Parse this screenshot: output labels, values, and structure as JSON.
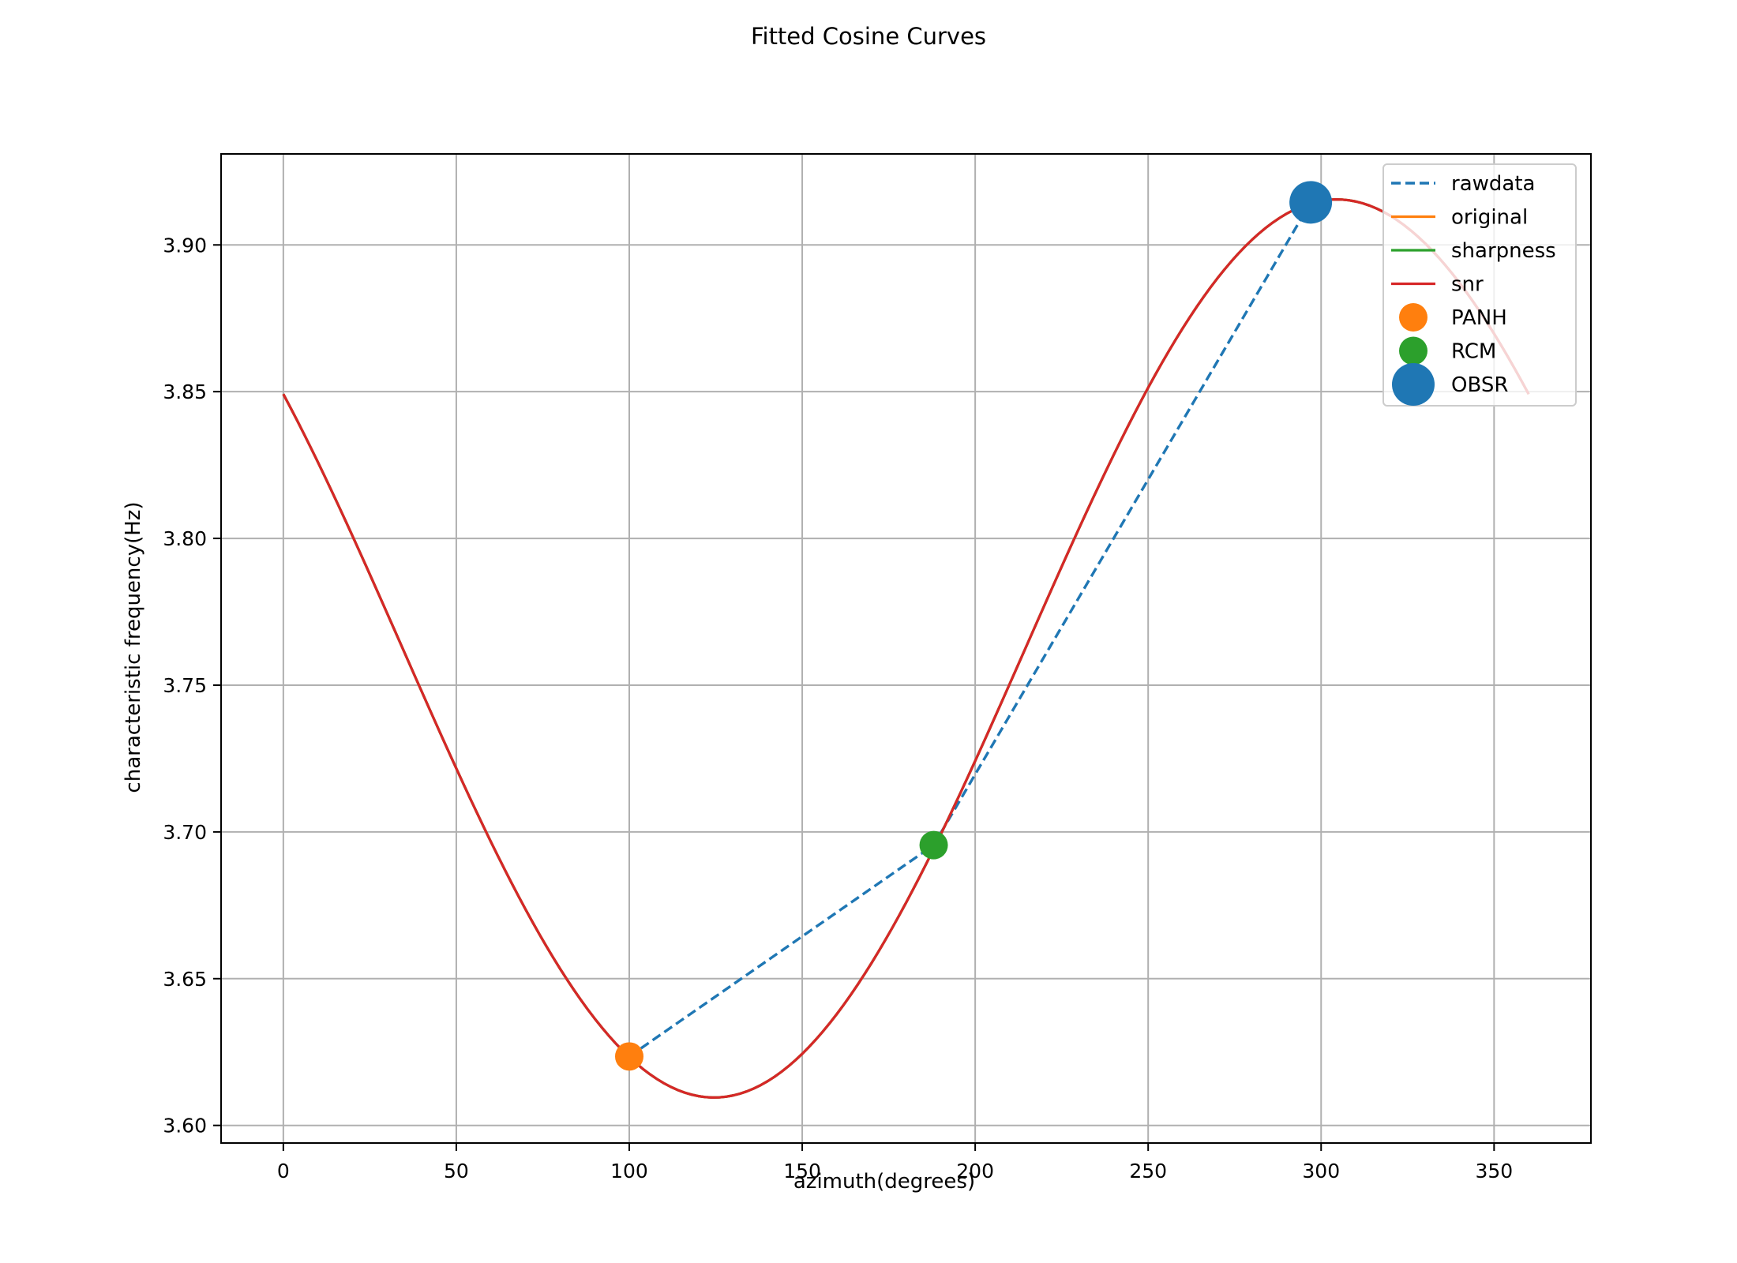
{
  "chart_data": {
    "type": "line",
    "title": "Fitted Cosine Curves",
    "xlabel": "azimuth(degrees)",
    "ylabel": "characteristic frequency(Hz)",
    "xlim": [
      -18,
      378
    ],
    "ylim": [
      3.594,
      3.931
    ],
    "xticks": [
      0,
      50,
      100,
      150,
      200,
      250,
      300,
      350
    ],
    "xtick_labels": [
      "0",
      "50",
      "100",
      "150",
      "200",
      "250",
      "300",
      "350"
    ],
    "yticks": [
      3.6,
      3.65,
      3.7,
      3.75,
      3.8,
      3.85,
      3.9
    ],
    "ytick_labels": [
      "3.60",
      "3.65",
      "3.70",
      "3.75",
      "3.80",
      "3.85",
      "3.90"
    ],
    "grid": true,
    "legend_position": "top-right",
    "series": [
      {
        "name": "rawdata",
        "kind": "line",
        "style": "dashed",
        "color": "#1f77b4",
        "x": [
          100,
          188,
          297
        ],
        "y": [
          3.6235,
          3.6955,
          3.9145
        ]
      },
      {
        "name": "original",
        "kind": "cosine",
        "color": "#ff7f0e",
        "mean": 3.7625,
        "amplitude": 0.153,
        "phase_deg": 304.5,
        "x_range": [
          0,
          360
        ]
      },
      {
        "name": "sharpness",
        "kind": "cosine",
        "color": "#2ca02c",
        "mean": 3.7625,
        "amplitude": 0.153,
        "phase_deg": 304.5,
        "x_range": [
          0,
          360
        ]
      },
      {
        "name": "snr",
        "kind": "cosine",
        "color": "#d62728",
        "mean": 3.7625,
        "amplitude": 0.153,
        "phase_deg": 304.5,
        "x_range": [
          0,
          360
        ]
      }
    ],
    "points": [
      {
        "name": "PANH",
        "x": 100,
        "y": 3.6235,
        "color": "#ff7f0e",
        "size": "medium"
      },
      {
        "name": "RCM",
        "x": 188,
        "y": 3.6955,
        "color": "#2ca02c",
        "size": "medium"
      },
      {
        "name": "OBSR",
        "x": 297,
        "y": 3.9145,
        "color": "#1f77b4",
        "size": "large"
      }
    ],
    "legend": [
      {
        "label": "rawdata",
        "kind": "dashed-line",
        "color": "#1f77b4"
      },
      {
        "label": "original",
        "kind": "line",
        "color": "#ff7f0e"
      },
      {
        "label": "sharpness",
        "kind": "line",
        "color": "#2ca02c"
      },
      {
        "label": "snr",
        "kind": "line",
        "color": "#d62728"
      },
      {
        "label": "PANH",
        "kind": "marker",
        "color": "#ff7f0e",
        "size": "medium"
      },
      {
        "label": "RCM",
        "kind": "marker",
        "color": "#2ca02c",
        "size": "medium"
      },
      {
        "label": "OBSR",
        "kind": "marker",
        "color": "#1f77b4",
        "size": "large"
      }
    ]
  }
}
